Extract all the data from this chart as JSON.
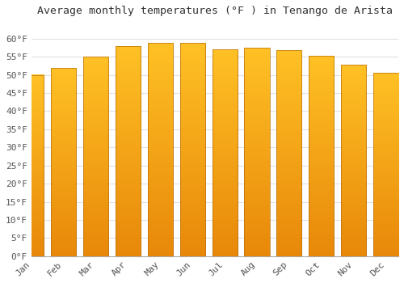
{
  "title": "Average monthly temperatures (°F ) in Tenango de Arista",
  "months": [
    "Jan",
    "Feb",
    "Mar",
    "Apr",
    "May",
    "Jun",
    "Jul",
    "Aug",
    "Sep",
    "Oct",
    "Nov",
    "Dec"
  ],
  "values": [
    50.0,
    51.8,
    55.0,
    57.9,
    58.8,
    58.8,
    57.0,
    57.4,
    56.8,
    55.2,
    52.7,
    50.5
  ],
  "bar_color": "#FFC125",
  "bar_color_dark": "#E8880A",
  "bar_edge_color": "#B87010",
  "ylim": [
    0,
    65
  ],
  "yticks": [
    0,
    5,
    10,
    15,
    20,
    25,
    30,
    35,
    40,
    45,
    50,
    55,
    60
  ],
  "ytick_labels": [
    "0°F",
    "5°F",
    "10°F",
    "15°F",
    "20°F",
    "25°F",
    "30°F",
    "35°F",
    "40°F",
    "45°F",
    "50°F",
    "55°F",
    "60°F"
  ],
  "grid_color": "#e0e0e0",
  "background_color": "#ffffff",
  "title_fontsize": 9.5,
  "tick_fontsize": 8,
  "bar_width": 0.78
}
